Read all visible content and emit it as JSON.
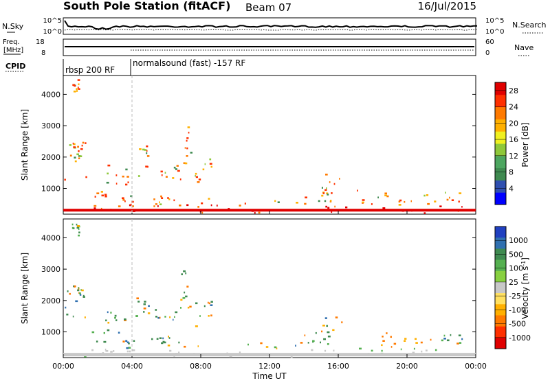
{
  "header": {
    "title": "South Pole Station (fitACF)",
    "beam": "Beam 07",
    "date": "16/Jul/2015"
  },
  "chart_data": [
    {
      "panel": "noise",
      "type": "line",
      "left_label": "N.Sky",
      "right_label": "N.Search",
      "ticks_left": [
        "10^5",
        "10^0"
      ],
      "ticks_right": [
        "10^5",
        "10^0"
      ],
      "series": [
        {
          "name": "N.Sky",
          "style": "solid",
          "level": 0.22
        },
        {
          "name": "N.Search",
          "style": "dotted",
          "level": 0.12
        }
      ]
    },
    {
      "panel": "frequency",
      "type": "line",
      "left_label": "Freq. [MHz]",
      "right_label": "Nave",
      "left_ticks": [
        18,
        8
      ],
      "right_ticks": [
        60,
        0
      ],
      "series": [
        {
          "name": "Freq",
          "style": "solid",
          "value": 12
        },
        {
          "name": "Nave",
          "style": "dotted",
          "value": 10
        }
      ]
    },
    {
      "panel": "cpid",
      "type": "table",
      "label": "CPID",
      "segments": [
        {
          "start": 0,
          "end": 4,
          "text": "rbsp 200 RF"
        },
        {
          "start": 4,
          "end": 24,
          "text": "normalsound (fast) -157 RF"
        }
      ]
    },
    {
      "panel": "power",
      "type": "heatmap",
      "ylabel": "Slant Range [km]",
      "ylim": [
        180,
        4600
      ],
      "yticks": [
        1000,
        2000,
        3000,
        4000
      ],
      "xlim": [
        0,
        24
      ],
      "xticks": [
        "00:00",
        "04:00",
        "08:00",
        "12:00",
        "16:00",
        "20:00",
        "00:00"
      ],
      "colorbar": {
        "label": "Power [dB]",
        "ticks": [
          4,
          8,
          12,
          16,
          20,
          24,
          28
        ],
        "colors": [
          "#0000ff",
          "#2f4fb0",
          "#3f8a50",
          "#4da660",
          "#8fc83a",
          "#f0f020",
          "#ffb000",
          "#ff7a00",
          "#ff3000",
          "#e00000"
        ]
      }
    },
    {
      "panel": "velocity",
      "type": "heatmap",
      "ylabel": "Slant Range [km]",
      "ylim": [
        180,
        4600
      ],
      "yticks": [
        1000,
        2000,
        3000,
        4000
      ],
      "xlim": [
        0,
        24
      ],
      "xticks": [
        "00:00",
        "04:00",
        "08:00",
        "12:00",
        "16:00",
        "20:00",
        "00:00"
      ],
      "xlabel": "Time UT",
      "colorbar": {
        "label": "Velocity [m s^-1]",
        "ticks": [
          "1000",
          "500",
          "100",
          "25",
          "-25",
          "-100",
          "-500",
          "-1000"
        ],
        "colors": [
          "#2040c0",
          "#3070b0",
          "#3f8a50",
          "#55b050",
          "#88d040",
          "#c8c8c8",
          "#ffe060",
          "#ffb000",
          "#ff7a00",
          "#ff3000",
          "#e00000"
        ]
      }
    }
  ]
}
